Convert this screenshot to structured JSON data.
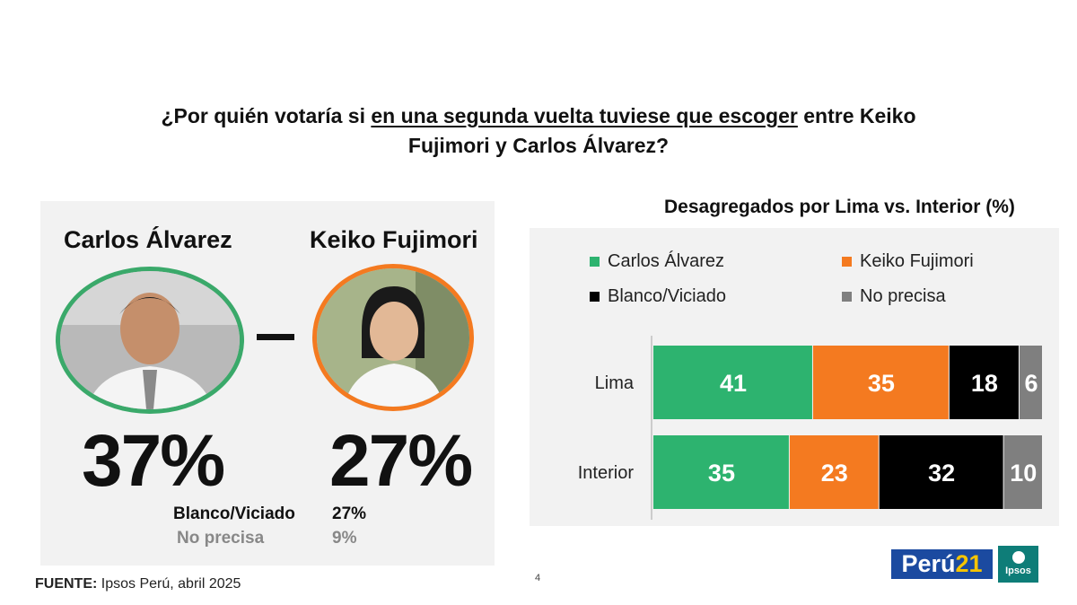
{
  "title": {
    "before": "¿Por quién votaría si ",
    "underlined": "en una segunda vuelta tuviese que escoger",
    "after": " entre Keiko Fujimori y Carlos Álvarez?"
  },
  "candidates": [
    {
      "name": "Carlos Álvarez",
      "percent": "37%",
      "color": "#3aa96a"
    },
    {
      "name": "Keiko Fujimori",
      "percent": "27%",
      "color": "#f47a20"
    }
  ],
  "others": [
    {
      "label": "Blanco/Viciado",
      "value": "27%"
    },
    {
      "label": "No precisa",
      "value": "9%"
    }
  ],
  "chart_data": {
    "type": "bar",
    "orientation": "horizontal",
    "stacked": true,
    "title": "Desagregados por Lima vs. Interior (%)",
    "categories": [
      "Lima",
      "Interior"
    ],
    "series": [
      {
        "name": "Carlos Álvarez",
        "values": [
          41,
          35
        ],
        "color": "#2db36f"
      },
      {
        "name": "Keiko Fujimori",
        "values": [
          35,
          23
        ],
        "color": "#f47a20"
      },
      {
        "name": "Blanco/Viciado",
        "values": [
          18,
          32
        ],
        "color": "#000000"
      },
      {
        "name": "No precisa",
        "values": [
          6,
          10
        ],
        "color": "#7f7f7f"
      }
    ],
    "xlim": [
      0,
      100
    ],
    "legend": "top"
  },
  "source": {
    "label": "FUENTE:",
    "text": " Ipsos Perú, abril 2025"
  },
  "page_number": "4",
  "logos": {
    "peru_text": "Perú",
    "peru_num": "21",
    "ipsos": "Ipsos"
  }
}
